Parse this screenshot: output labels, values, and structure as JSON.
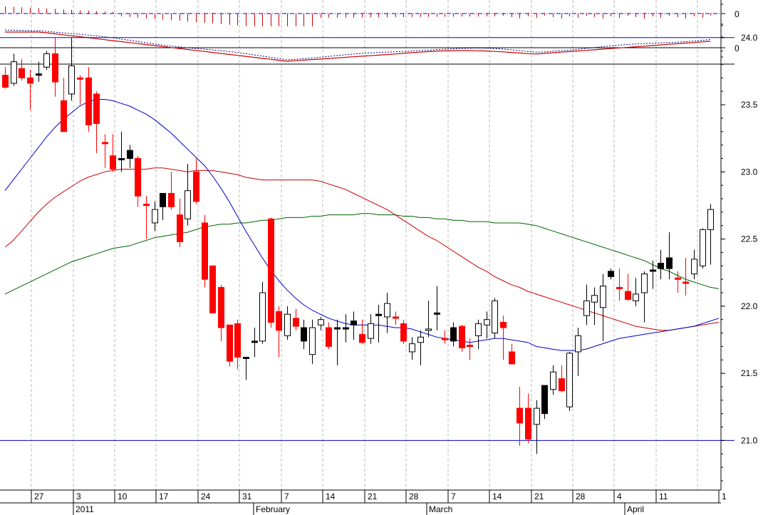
{
  "chart_data": [
    {
      "panel": "histogram-indicator",
      "type": "bar",
      "ytick_labels": [
        "0"
      ],
      "zero_line": true,
      "colors": {
        "bars": "#cc0000",
        "zero_line": "#0000cc"
      }
    },
    {
      "panel": "oscillator",
      "type": "line",
      "ytick_labels": [
        "0"
      ],
      "series": [
        {
          "style": "solid",
          "color": "#cc0000"
        },
        {
          "style": "dotted",
          "color": "#000080"
        }
      ]
    },
    {
      "panel": "price",
      "type": "candlestick",
      "ylim": [
        20.62,
        24.28
      ],
      "yticks": [
        21.0,
        21.5,
        22.0,
        22.5,
        23.0,
        23.5,
        24.0
      ],
      "ytick_labels": [
        "21.0",
        "21.5",
        "22.0",
        "22.5",
        "23.0",
        "23.5",
        "24.0"
      ],
      "horizontal_lines": [
        24.0,
        21.0
      ],
      "colors": {
        "down": "#ff0000",
        "up": "#ffffff",
        "neutral": "#000000",
        "ma_short": "#0000cc",
        "ma_mid": "#cc0000",
        "ma_long": "#006600",
        "hline": "#0000cc"
      },
      "x_day_labels": [
        "27",
        "3",
        "10",
        "17",
        "24",
        "31",
        "7",
        "14",
        "21",
        "28",
        "7",
        "14",
        "21",
        "28",
        "4",
        "11",
        "1"
      ],
      "x_month_labels": [
        "2011",
        "February",
        "March",
        "April"
      ],
      "candles": [
        {
          "o": 23.72,
          "h": 23.78,
          "l": 23.62,
          "c": 23.63,
          "k": "down"
        },
        {
          "o": 23.66,
          "h": 23.88,
          "l": 23.64,
          "c": 23.82,
          "k": "up"
        },
        {
          "o": 23.77,
          "h": 23.84,
          "l": 23.68,
          "c": 23.7,
          "k": "down"
        },
        {
          "o": 23.7,
          "h": 23.76,
          "l": 23.46,
          "c": 23.66,
          "k": "down"
        },
        {
          "o": 23.73,
          "h": 23.82,
          "l": 23.67,
          "c": 23.73,
          "k": "neutral"
        },
        {
          "o": 23.78,
          "h": 23.9,
          "l": 23.76,
          "c": 23.88,
          "k": "up"
        },
        {
          "o": 23.88,
          "h": 24.0,
          "l": 23.56,
          "c": 23.67,
          "k": "down"
        },
        {
          "o": 23.53,
          "h": 23.7,
          "l": 23.3,
          "c": 23.3,
          "k": "down"
        },
        {
          "o": 23.58,
          "h": 24.0,
          "l": 23.53,
          "c": 23.79,
          "k": "up"
        },
        {
          "o": 23.7,
          "h": 23.72,
          "l": 23.5,
          "c": 23.69,
          "k": "down"
        },
        {
          "o": 23.7,
          "h": 23.78,
          "l": 23.3,
          "c": 23.35,
          "k": "down"
        },
        {
          "o": 23.58,
          "h": 23.6,
          "l": 23.14,
          "c": 23.36,
          "k": "down"
        },
        {
          "o": 23.22,
          "h": 23.28,
          "l": 23.03,
          "c": 23.22,
          "k": "down"
        },
        {
          "o": 23.12,
          "h": 23.28,
          "l": 23.0,
          "c": 23.02,
          "k": "down"
        },
        {
          "o": 23.1,
          "h": 23.3,
          "l": 23.0,
          "c": 23.1,
          "k": "neutral"
        },
        {
          "o": 23.16,
          "h": 23.2,
          "l": 23.03,
          "c": 23.1,
          "k": "neutral"
        },
        {
          "o": 23.1,
          "h": 23.12,
          "l": 22.74,
          "c": 22.82,
          "k": "down"
        },
        {
          "o": 22.76,
          "h": 22.82,
          "l": 22.5,
          "c": 22.76,
          "k": "down"
        },
        {
          "o": 22.62,
          "h": 22.78,
          "l": 22.56,
          "c": 22.72,
          "k": "up"
        },
        {
          "o": 22.74,
          "h": 22.84,
          "l": 22.64,
          "c": 22.84,
          "k": "neutral"
        },
        {
          "o": 22.84,
          "h": 23.0,
          "l": 22.72,
          "c": 22.74,
          "k": "down"
        },
        {
          "o": 22.68,
          "h": 22.8,
          "l": 22.44,
          "c": 22.48,
          "k": "down"
        },
        {
          "o": 22.65,
          "h": 23.06,
          "l": 22.6,
          "c": 22.86,
          "k": "up"
        },
        {
          "o": 23.0,
          "h": 23.1,
          "l": 22.76,
          "c": 22.78,
          "k": "down"
        },
        {
          "o": 22.62,
          "h": 22.68,
          "l": 22.14,
          "c": 22.2,
          "k": "down"
        },
        {
          "o": 22.3,
          "h": 22.3,
          "l": 21.95,
          "c": 21.95,
          "k": "down"
        },
        {
          "o": 22.14,
          "h": 22.16,
          "l": 21.74,
          "c": 21.84,
          "k": "down"
        },
        {
          "o": 21.86,
          "h": 21.86,
          "l": 21.55,
          "c": 21.59,
          "k": "down"
        },
        {
          "o": 21.87,
          "h": 21.9,
          "l": 21.53,
          "c": 21.62,
          "k": "down"
        },
        {
          "o": 21.62,
          "h": 21.62,
          "l": 21.45,
          "c": 21.62,
          "k": "neutral"
        },
        {
          "o": 21.74,
          "h": 21.84,
          "l": 21.62,
          "c": 21.74,
          "k": "neutral"
        },
        {
          "o": 21.74,
          "h": 22.18,
          "l": 21.72,
          "c": 22.1,
          "k": "up"
        },
        {
          "o": 21.88,
          "h": 22.66,
          "l": 21.84,
          "c": 22.65,
          "k": "down"
        },
        {
          "o": 21.96,
          "h": 22.0,
          "l": 21.62,
          "c": 21.82,
          "k": "down"
        },
        {
          "o": 21.78,
          "h": 22.0,
          "l": 21.75,
          "c": 21.94,
          "k": "up"
        },
        {
          "o": 21.91,
          "h": 21.98,
          "l": 21.82,
          "c": 21.85,
          "k": "down"
        },
        {
          "o": 21.84,
          "h": 21.9,
          "l": 21.68,
          "c": 21.74,
          "k": "neutral"
        },
        {
          "o": 21.64,
          "h": 21.9,
          "l": 21.57,
          "c": 21.84,
          "k": "up"
        },
        {
          "o": 21.86,
          "h": 21.92,
          "l": 21.82,
          "c": 21.9,
          "k": "up"
        },
        {
          "o": 21.84,
          "h": 21.88,
          "l": 21.68,
          "c": 21.7,
          "k": "down"
        },
        {
          "o": 21.84,
          "h": 21.9,
          "l": 21.56,
          "c": 21.84,
          "k": "neutral"
        },
        {
          "o": 21.84,
          "h": 21.94,
          "l": 21.73,
          "c": 21.84,
          "k": "neutral"
        },
        {
          "o": 21.86,
          "h": 21.96,
          "l": 21.75,
          "c": 21.89,
          "k": "neutral"
        },
        {
          "o": 21.79,
          "h": 21.9,
          "l": 21.72,
          "c": 21.73,
          "k": "down"
        },
        {
          "o": 21.76,
          "h": 21.94,
          "l": 21.72,
          "c": 21.87,
          "k": "up"
        },
        {
          "o": 21.94,
          "h": 22.01,
          "l": 21.73,
          "c": 21.94,
          "k": "neutral"
        },
        {
          "o": 21.92,
          "h": 22.1,
          "l": 21.8,
          "c": 22.02,
          "k": "up"
        },
        {
          "o": 21.92,
          "h": 21.96,
          "l": 21.86,
          "c": 21.92,
          "k": "down"
        },
        {
          "o": 21.87,
          "h": 21.9,
          "l": 21.72,
          "c": 21.74,
          "k": "down"
        },
        {
          "o": 21.66,
          "h": 21.77,
          "l": 21.6,
          "c": 21.72,
          "k": "up"
        },
        {
          "o": 21.73,
          "h": 21.82,
          "l": 21.56,
          "c": 21.77,
          "k": "up"
        },
        {
          "o": 21.83,
          "h": 22.04,
          "l": 21.77,
          "c": 21.83,
          "k": "up"
        },
        {
          "o": 21.95,
          "h": 22.15,
          "l": 21.82,
          "c": 21.95,
          "k": "neutral"
        },
        {
          "o": 21.76,
          "h": 21.82,
          "l": 21.72,
          "c": 21.76,
          "k": "down"
        },
        {
          "o": 21.84,
          "h": 21.88,
          "l": 21.7,
          "c": 21.74,
          "k": "neutral"
        },
        {
          "o": 21.85,
          "h": 21.86,
          "l": 21.66,
          "c": 21.69,
          "k": "down"
        },
        {
          "o": 21.71,
          "h": 21.76,
          "l": 21.6,
          "c": 21.71,
          "k": "down"
        },
        {
          "o": 21.78,
          "h": 21.9,
          "l": 21.68,
          "c": 21.87,
          "k": "up"
        },
        {
          "o": 21.9,
          "h": 21.96,
          "l": 21.76,
          "c": 21.86,
          "k": "up"
        },
        {
          "o": 21.8,
          "h": 22.06,
          "l": 21.76,
          "c": 22.04,
          "k": "up"
        },
        {
          "o": 21.88,
          "h": 21.93,
          "l": 21.6,
          "c": 21.84,
          "k": "down"
        },
        {
          "o": 21.66,
          "h": 21.72,
          "l": 21.57,
          "c": 21.57,
          "k": "down"
        },
        {
          "o": 21.24,
          "h": 21.4,
          "l": 20.96,
          "c": 21.13,
          "k": "down"
        },
        {
          "o": 21.24,
          "h": 21.35,
          "l": 20.98,
          "c": 21.01,
          "k": "down"
        },
        {
          "o": 21.12,
          "h": 21.3,
          "l": 20.9,
          "c": 21.24,
          "k": "up"
        },
        {
          "o": 21.2,
          "h": 21.4,
          "l": 21.16,
          "c": 21.41,
          "k": "neutral"
        },
        {
          "o": 21.38,
          "h": 21.56,
          "l": 21.34,
          "c": 21.51,
          "k": "up"
        },
        {
          "o": 21.46,
          "h": 21.56,
          "l": 21.36,
          "c": 21.37,
          "k": "down"
        },
        {
          "o": 21.25,
          "h": 21.66,
          "l": 21.22,
          "c": 21.65,
          "k": "up"
        },
        {
          "o": 21.66,
          "h": 21.84,
          "l": 21.48,
          "c": 21.78,
          "k": "up"
        },
        {
          "o": 21.93,
          "h": 22.16,
          "l": 21.86,
          "c": 22.04,
          "k": "up"
        },
        {
          "o": 22.03,
          "h": 22.14,
          "l": 21.86,
          "c": 22.08,
          "k": "up"
        },
        {
          "o": 21.99,
          "h": 22.24,
          "l": 21.74,
          "c": 22.15,
          "k": "up"
        },
        {
          "o": 22.22,
          "h": 22.28,
          "l": 22.2,
          "c": 22.26,
          "k": "neutral"
        },
        {
          "o": 22.14,
          "h": 22.28,
          "l": 22.04,
          "c": 22.14,
          "k": "down"
        },
        {
          "o": 22.11,
          "h": 22.24,
          "l": 22.04,
          "c": 22.05,
          "k": "down"
        },
        {
          "o": 22.04,
          "h": 22.21,
          "l": 22.0,
          "c": 22.09,
          "k": "up"
        },
        {
          "o": 22.1,
          "h": 22.26,
          "l": 21.88,
          "c": 22.24,
          "k": "up"
        },
        {
          "o": 22.27,
          "h": 22.34,
          "l": 22.13,
          "c": 22.27,
          "k": "neutral"
        },
        {
          "o": 22.28,
          "h": 22.42,
          "l": 22.2,
          "c": 22.32,
          "k": "neutral"
        },
        {
          "o": 22.36,
          "h": 22.55,
          "l": 22.2,
          "c": 22.28,
          "k": "neutral"
        },
        {
          "o": 22.21,
          "h": 22.26,
          "l": 22.1,
          "c": 22.21,
          "k": "down"
        },
        {
          "o": 22.18,
          "h": 22.36,
          "l": 22.08,
          "c": 22.18,
          "k": "down"
        },
        {
          "o": 22.24,
          "h": 22.42,
          "l": 22.2,
          "c": 22.35,
          "k": "up"
        },
        {
          "o": 22.3,
          "h": 22.58,
          "l": 22.28,
          "c": 22.57,
          "k": "up"
        },
        {
          "o": 22.57,
          "h": 22.76,
          "l": 22.31,
          "c": 22.72,
          "k": "up"
        }
      ],
      "moving_averages": {
        "short": [
          22.86,
          22.94,
          23.02,
          23.1,
          23.18,
          23.26,
          23.33,
          23.39,
          23.44,
          23.49,
          23.52,
          23.54,
          23.54,
          23.53,
          23.51,
          23.49,
          23.46,
          23.43,
          23.39,
          23.34,
          23.29,
          23.23,
          23.17,
          23.11,
          23.05,
          22.97,
          22.88,
          22.78,
          22.67,
          22.56,
          22.46,
          22.36,
          22.27,
          22.19,
          22.12,
          22.06,
          22.01,
          21.97,
          21.94,
          21.91,
          21.89,
          21.87,
          21.86,
          21.86,
          21.86,
          21.86,
          21.85,
          21.84,
          21.84,
          21.83,
          21.81,
          21.79,
          21.77,
          21.76,
          21.75,
          21.74,
          21.73,
          21.74,
          21.75,
          21.76,
          21.76,
          21.75,
          21.74,
          21.73,
          21.7,
          21.69,
          21.68,
          21.67,
          21.67,
          21.67,
          21.68,
          21.7,
          21.72,
          21.74,
          21.76,
          21.77,
          21.78,
          21.79,
          21.8,
          21.81,
          21.82,
          21.83,
          21.84,
          21.85,
          21.87,
          21.89,
          21.91
        ],
        "mid": [
          22.44,
          22.49,
          22.56,
          22.63,
          22.7,
          22.76,
          22.81,
          22.85,
          22.89,
          22.93,
          22.96,
          22.98,
          23.0,
          23.01,
          23.02,
          23.02,
          23.02,
          23.02,
          23.03,
          23.03,
          23.02,
          23.01,
          23.0,
          23.01,
          23.01,
          23.01,
          23.0,
          22.99,
          22.98,
          22.96,
          22.95,
          22.94,
          22.94,
          22.94,
          22.94,
          22.94,
          22.94,
          22.94,
          22.93,
          22.91,
          22.89,
          22.87,
          22.84,
          22.81,
          22.78,
          22.75,
          22.72,
          22.68,
          22.64,
          22.6,
          22.56,
          22.52,
          22.49,
          22.45,
          22.41,
          22.37,
          22.33,
          22.29,
          22.26,
          22.22,
          22.19,
          22.16,
          22.14,
          22.11,
          22.09,
          22.07,
          22.05,
          22.03,
          22.01,
          21.99,
          21.97,
          21.95,
          21.93,
          21.91,
          21.89,
          21.87,
          21.85,
          21.84,
          21.83,
          21.82,
          21.82,
          21.83,
          21.84,
          21.85,
          21.86,
          21.87,
          21.88
        ],
        "long": [
          22.09,
          22.12,
          22.15,
          22.18,
          22.21,
          22.24,
          22.27,
          22.3,
          22.33,
          22.35,
          22.37,
          22.39,
          22.41,
          22.43,
          22.44,
          22.45,
          22.47,
          22.49,
          22.51,
          22.52,
          22.53,
          22.54,
          22.55,
          22.57,
          22.59,
          22.6,
          22.61,
          22.61,
          22.62,
          22.62,
          22.63,
          22.64,
          22.64,
          22.65,
          22.66,
          22.66,
          22.66,
          22.67,
          22.67,
          22.68,
          22.68,
          22.68,
          22.68,
          22.69,
          22.69,
          22.68,
          22.68,
          22.68,
          22.67,
          22.67,
          22.66,
          22.66,
          22.65,
          22.65,
          22.64,
          22.64,
          22.63,
          22.63,
          22.63,
          22.62,
          22.62,
          22.62,
          22.62,
          22.61,
          22.6,
          22.58,
          22.56,
          22.54,
          22.52,
          22.5,
          22.48,
          22.46,
          22.44,
          22.42,
          22.4,
          22.38,
          22.36,
          22.34,
          22.31,
          22.28,
          22.26,
          22.23,
          22.2,
          22.18,
          22.16,
          22.14,
          22.13
        ]
      }
    }
  ]
}
